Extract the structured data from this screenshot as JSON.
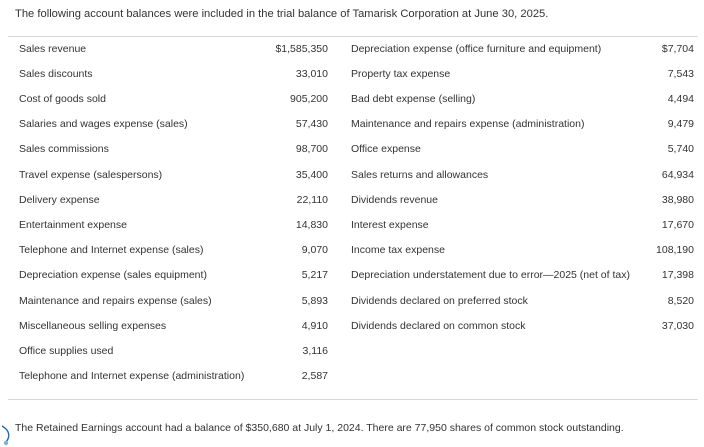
{
  "intro": "The following account balances were included in the trial balance of Tamarisk Corporation at June 30, 2025.",
  "rows": [
    {
      "left_name": "Sales revenue",
      "left_value": "$1,585,350",
      "right_name": "Depreciation expense (office furniture and equipment)",
      "right_value": "$7,704"
    },
    {
      "left_name": "Sales discounts",
      "left_value": "33,010",
      "right_name": "Property tax expense",
      "right_value": "7,543"
    },
    {
      "left_name": "Cost of goods sold",
      "left_value": "905,200",
      "right_name": "Bad debt expense (selling)",
      "right_value": "4,494"
    },
    {
      "left_name": "Salaries and wages expense (sales)",
      "left_value": "57,430",
      "right_name": "Maintenance and repairs expense (administration)",
      "right_value": "9,479"
    },
    {
      "left_name": "Sales commissions",
      "left_value": "98,700",
      "right_name": "Office expense",
      "right_value": "5,740"
    },
    {
      "left_name": "Travel expense (salespersons)",
      "left_value": "35,400",
      "right_name": "Sales returns and allowances",
      "right_value": "64,934"
    },
    {
      "left_name": "Delivery expense",
      "left_value": "22,110",
      "right_name": "Dividends revenue",
      "right_value": "38,980"
    },
    {
      "left_name": "Entertainment expense",
      "left_value": "14,830",
      "right_name": "Interest expense",
      "right_value": "17,670"
    },
    {
      "left_name": "Telephone and Internet expense (sales)",
      "left_value": "9,070",
      "right_name": "Income tax expense",
      "right_value": "108,190"
    },
    {
      "left_name": "Depreciation expense (sales equipment)",
      "left_value": "5,217",
      "right_name": "Depreciation understatement due to error—2025 (net of tax)",
      "right_value": "17,398"
    },
    {
      "left_name": "Maintenance and repairs expense (sales)",
      "left_value": "5,893",
      "right_name": "Dividends declared on preferred stock",
      "right_value": "8,520"
    },
    {
      "left_name": "Miscellaneous selling expenses",
      "left_value": "4,910",
      "right_name": "Dividends declared on common stock",
      "right_value": "37,030"
    },
    {
      "left_name": "Office supplies used",
      "left_value": "3,116",
      "right_name": "",
      "right_value": ""
    },
    {
      "left_name": "Telephone and Internet expense (administration)",
      "left_value": "2,587",
      "right_name": "",
      "right_value": ""
    }
  ],
  "footer": "The Retained Earnings account had a balance of $350,680 at July 1, 2024. There are 77,950 shares of common stock outstanding.",
  "colors": {
    "text": "#333333",
    "rule": "#d8d8d8",
    "accent_mark": "#1b6fb0"
  },
  "icons": {
    "corner": "corner-curl-icon"
  }
}
